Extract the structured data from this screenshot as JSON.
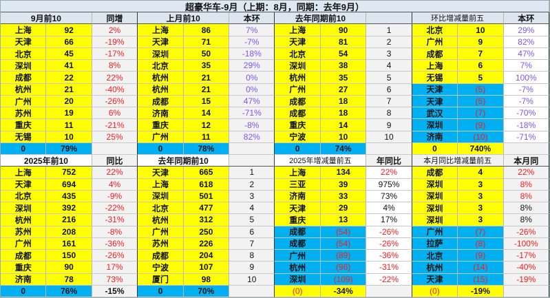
{
  "title": "超豪华车-9月（上期：8月，同期：去年9月）",
  "colors": {
    "yellow": "#ffff00",
    "blue": "#00b0f0",
    "red": "#ff1a1a",
    "purple": "#7a55f5",
    "header": "#dce6f1"
  },
  "top": [
    {
      "type": "top10",
      "header": "9月前10",
      "header2": "同增",
      "pct_color": "red",
      "rows": [
        [
          "上海",
          "92",
          "2%"
        ],
        [
          "天津",
          "66",
          "-19%"
        ],
        [
          "北京",
          "45",
          "-17%"
        ],
        [
          "深圳",
          "41",
          "8%"
        ],
        [
          "成都",
          "22",
          "22%"
        ],
        [
          "杭州",
          "21",
          "-40%"
        ],
        [
          "广州",
          "20",
          "-26%"
        ],
        [
          "苏州",
          "19",
          "6%"
        ],
        [
          "重庆",
          "11",
          "-21%"
        ],
        [
          "无锡",
          "10",
          "25%"
        ]
      ],
      "total": [
        "0",
        "79%",
        ""
      ]
    },
    {
      "type": "top10",
      "header": "上月前10",
      "header2": "本环",
      "pct_color": "purple",
      "rows": [
        [
          "上海",
          "86",
          "7%"
        ],
        [
          "天津",
          "71",
          "-7%"
        ],
        [
          "深圳",
          "50",
          "-18%"
        ],
        [
          "北京",
          "35",
          "29%"
        ],
        [
          "杭州",
          "21",
          "0%"
        ],
        [
          "杭州",
          "21",
          "0%"
        ],
        [
          "成都",
          "15",
          "47%"
        ],
        [
          "济南",
          "14",
          "-71%"
        ],
        [
          "重庆",
          "12",
          "-8%"
        ],
        [
          "广州",
          "11",
          "82%"
        ]
      ],
      "total": [
        "0",
        "78%",
        ""
      ]
    },
    {
      "type": "rank",
      "header": "去年同期前10",
      "header2": "",
      "rows": [
        [
          "上海",
          "90",
          "1"
        ],
        [
          "天津",
          "81",
          "2"
        ],
        [
          "北京",
          "54",
          "3"
        ],
        [
          "深圳",
          "38",
          "4"
        ],
        [
          "杭州",
          "35",
          "5"
        ],
        [
          "广州",
          "27",
          "6"
        ],
        [
          "成都",
          "18",
          "7"
        ],
        [
          "成都",
          "18",
          "8"
        ],
        [
          "重庆",
          "14",
          "9"
        ],
        [
          "宁波",
          "10",
          "10"
        ]
      ],
      "total": [
        "0",
        "74%",
        ""
      ]
    },
    {
      "type": "delta",
      "header": "环比增减量前五",
      "header2": "本环",
      "pct_color": "purple",
      "rows": [
        [
          "北京",
          "10",
          "29%"
        ],
        [
          "广州",
          "9",
          "82%"
        ],
        [
          "成都",
          "7",
          "47%"
        ],
        [
          "上海",
          "6",
          "7%"
        ],
        [
          "无锡",
          "5",
          "100%"
        ],
        [
          "天津",
          "(5)",
          "-7%"
        ],
        [
          "天津",
          "(5)",
          "-7%"
        ],
        [
          "武汉",
          "(7)",
          "-70%"
        ],
        [
          "深圳",
          "(9)",
          "-18%"
        ],
        [
          "济南",
          "(10)",
          "-71%"
        ]
      ],
      "total": [
        "0",
        "740%",
        ""
      ]
    }
  ],
  "bottom": [
    {
      "type": "top10",
      "header": "2025年前10",
      "header2": "同比",
      "pct_color": "red",
      "hdr_bg": "w",
      "rows": [
        [
          "上海",
          "752",
          "22%"
        ],
        [
          "天津",
          "694",
          "4%"
        ],
        [
          "北京",
          "435",
          "-9%"
        ],
        [
          "深圳",
          "392",
          "-22%"
        ],
        [
          "杭州",
          "216",
          "-31%"
        ],
        [
          "苏州",
          "208",
          "-8%"
        ],
        [
          "广州",
          "161",
          "-36%"
        ],
        [
          "成都",
          "150",
          "-26%"
        ],
        [
          "重庆",
          "90",
          "17%"
        ],
        [
          "济南",
          "78",
          "73%"
        ]
      ],
      "total": [
        "0",
        "76%",
        "-15%"
      ]
    },
    {
      "type": "rank",
      "header": "去年同期前10",
      "header2": "",
      "hdr_bg": "w",
      "rows": [
        [
          "天津",
          "665",
          "1"
        ],
        [
          "上海",
          "618",
          "2"
        ],
        [
          "深圳",
          "501",
          "3"
        ],
        [
          "北京",
          "477",
          "4"
        ],
        [
          "杭州",
          "312",
          "5"
        ],
        [
          "广州",
          "250",
          "6"
        ],
        [
          "苏州",
          "226",
          "7"
        ],
        [
          "成都",
          "204",
          "8"
        ],
        [
          "宁波",
          "107",
          "9"
        ],
        [
          "厦门",
          "98",
          "10"
        ]
      ],
      "total": [
        "0",
        "70%",
        ""
      ]
    },
    {
      "type": "delta",
      "header": "2025年增减量前五",
      "header2": "年同比",
      "hdr_bg": "w",
      "pct_colors": [
        "red",
        "blk",
        "blk",
        "blk",
        "blk",
        "red",
        "red",
        "red",
        "red",
        "red"
      ],
      "rows": [
        [
          "上海",
          "134",
          "22%"
        ],
        [
          "三亚",
          "39",
          "975%"
        ],
        [
          "济南",
          "33",
          "73%"
        ],
        [
          "天津",
          "29",
          "4%"
        ],
        [
          "重庆",
          "13",
          "17%"
        ],
        [
          "成都",
          "(54)",
          "-26%"
        ],
        [
          "成都",
          "(54)",
          "-26%"
        ],
        [
          "广州",
          "(89)",
          "-36%"
        ],
        [
          "杭州",
          "(96)",
          "-31%"
        ],
        [
          "深圳",
          "(109)",
          "-22%"
        ]
      ],
      "total": [
        "(0)",
        "-34%",
        ""
      ]
    },
    {
      "type": "delta",
      "header": "本月同比增减量前五",
      "header2": "本月同",
      "hdr_bg": "g",
      "pct_bg": "g",
      "pct_colors": [
        "red",
        "red",
        "red",
        "blk",
        "blk",
        "red",
        "red",
        "red",
        "red",
        "red"
      ],
      "rows": [
        [
          "成都",
          "4",
          "22%"
        ],
        [
          "深圳",
          "3",
          "8%"
        ],
        [
          "深圳",
          "3",
          "8%"
        ],
        [
          "深圳",
          "3",
          "8%"
        ],
        [
          "深圳",
          "3",
          "8%"
        ],
        [
          "广州",
          "(7)",
          "-26%"
        ],
        [
          "拉萨",
          "(8)",
          "-100%"
        ],
        [
          "北京",
          "(9)",
          "-17%"
        ],
        [
          "杭州",
          "(14)",
          "-40%"
        ],
        [
          "天津",
          "(15)",
          "-19%"
        ]
      ],
      "total": [
        "(0)",
        "-19%",
        ""
      ]
    }
  ]
}
